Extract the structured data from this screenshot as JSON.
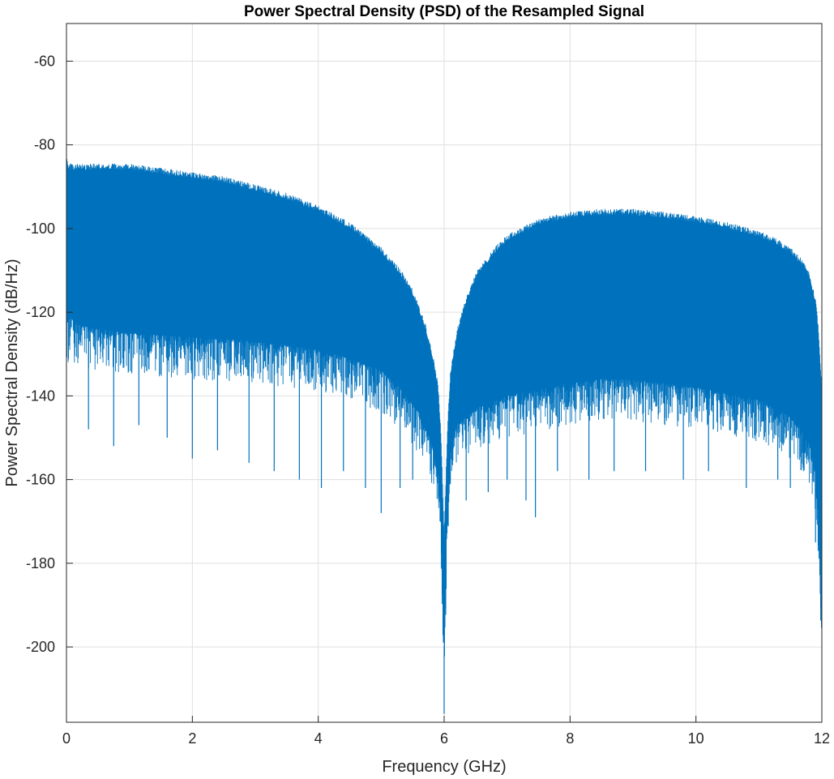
{
  "chart_data": {
    "type": "line",
    "title": "Power Spectral Density (PSD) of the Resampled Signal",
    "xlabel": "Frequency (GHz)",
    "ylabel": "Power Spectral Density (dB/Hz)",
    "xlim": [
      0,
      12
    ],
    "ylim": [
      -218,
      -51
    ],
    "xticks": [
      0,
      2,
      4,
      6,
      8,
      10,
      12
    ],
    "xtick_labels": [
      "0",
      "2",
      "4",
      "6",
      "8",
      "10",
      "12"
    ],
    "yticks": [
      -60,
      -80,
      -100,
      -120,
      -140,
      -160,
      -180,
      -200
    ],
    "ytick_labels": [
      "-60",
      "-80",
      "-100",
      "-120",
      "-140",
      "-160",
      "-180",
      "-200"
    ],
    "grid": true,
    "legend": "none",
    "series": [
      {
        "color": "#0072BD",
        "upper_envelope": {
          "x": [
            0,
            0.02,
            0.1,
            0.5,
            1.0,
            1.5,
            2.0,
            2.5,
            3.0,
            3.5,
            4.0,
            4.5,
            5.0,
            5.3,
            5.5,
            5.7,
            5.8,
            5.9,
            5.95,
            6.0,
            6.05,
            6.1,
            6.2,
            6.3,
            6.5,
            6.8,
            7.0,
            7.5,
            8.0,
            8.5,
            9.0,
            9.5,
            10.0,
            10.5,
            11.0,
            11.3,
            11.5,
            11.7,
            11.8,
            11.9,
            11.95,
            12.0
          ],
          "y": [
            -84,
            -86,
            -86,
            -86,
            -86,
            -87,
            -88,
            -89,
            -91,
            -93,
            -96,
            -100,
            -106,
            -111,
            -116,
            -124,
            -130,
            -138,
            -150,
            -175,
            -150,
            -135,
            -126,
            -120,
            -112,
            -106,
            -103,
            -99,
            -97.5,
            -96.8,
            -96.8,
            -97.5,
            -98.5,
            -100,
            -102,
            -104,
            -106,
            -109,
            -112,
            -118,
            -126,
            -140
          ]
        },
        "lower_envelope": {
          "x": [
            0,
            0.05,
            0.2,
            0.5,
            1.0,
            2.0,
            3.0,
            4.0,
            4.5,
            5.0,
            5.3,
            5.6,
            5.8,
            5.9,
            5.95,
            6.0,
            6.05,
            6.1,
            6.2,
            6.5,
            7.0,
            8.0,
            8.5,
            9.0,
            10.0,
            11.0,
            11.5,
            11.8,
            11.9,
            11.95,
            12.0
          ],
          "y": [
            -120,
            -118,
            -120,
            -121,
            -122,
            -123,
            -124,
            -126,
            -128,
            -131,
            -135,
            -141,
            -148,
            -156,
            -168,
            -200,
            -164,
            -150,
            -144,
            -140,
            -137,
            -134,
            -133,
            -133,
            -135,
            -138,
            -142,
            -148,
            -156,
            -168,
            -195
          ]
        },
        "notable_dips": {
          "x": [
            0.35,
            0.75,
            1.15,
            1.6,
            2.0,
            2.4,
            2.9,
            3.3,
            3.7,
            4.05,
            4.4,
            4.75,
            5.0,
            5.3,
            5.5,
            6.0,
            6.35,
            6.7,
            7.0,
            7.3,
            7.45,
            7.8,
            8.3,
            8.7,
            9.2,
            9.8,
            10.2,
            10.8,
            11.3,
            11.5,
            11.9
          ],
          "y": [
            -148,
            -152,
            -147,
            -150,
            -155,
            -153,
            -156,
            -158,
            -160,
            -162,
            -158,
            -162,
            -168,
            -162,
            -160,
            -216,
            -165,
            -163,
            -160,
            -165,
            -169,
            -158,
            -160,
            -158,
            -158,
            -160,
            -158,
            -162,
            -160,
            -162,
            -175
          ]
        }
      }
    ]
  }
}
